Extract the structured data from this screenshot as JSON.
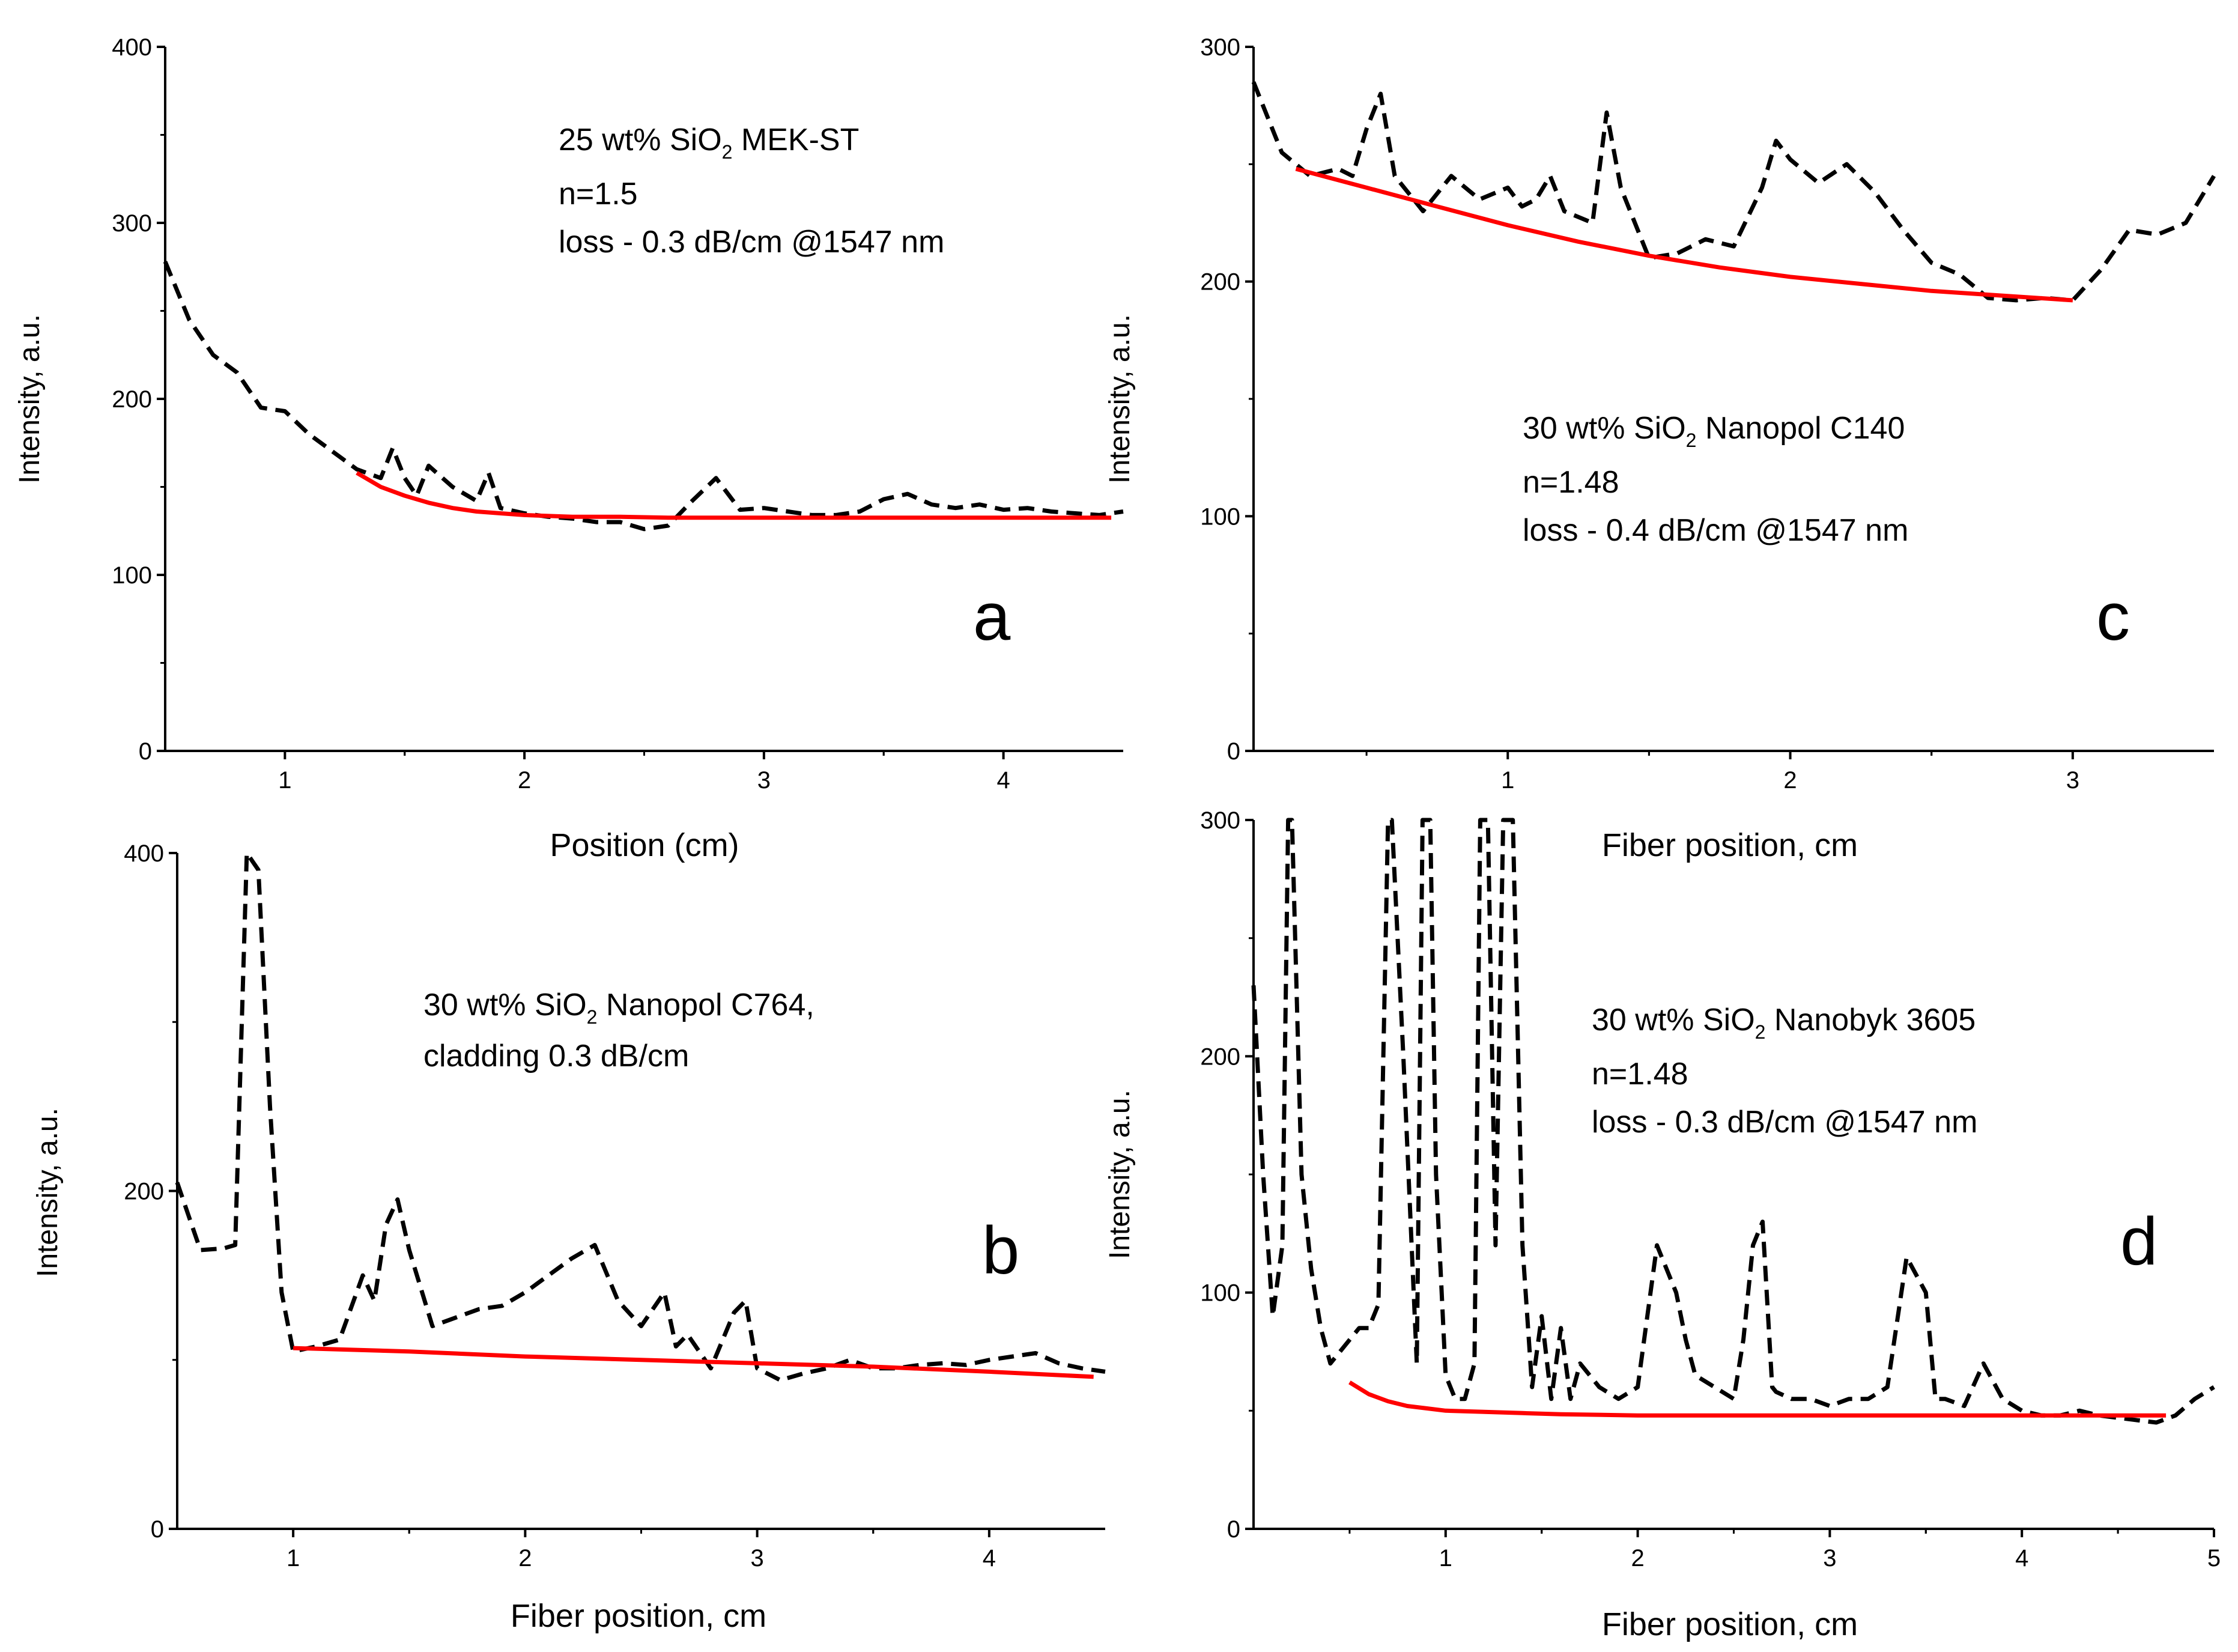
{
  "colors": {
    "measured": "#000000",
    "fit": "#ff0000",
    "background": "#ffffff"
  },
  "chart_data": [
    {
      "id": "a",
      "type": "line",
      "panel_label": "a",
      "xlabel": "Position (cm)",
      "ylabel": "Intensity, a.u.",
      "xlim": [
        0.5,
        4.5
      ],
      "ylim": [
        0,
        400
      ],
      "xticks": [
        1,
        2,
        3,
        4
      ],
      "yticks": [
        0,
        100,
        200,
        300,
        400
      ],
      "annotation": {
        "l1_pre": "25 wt% SiO",
        "l1_sub": "2",
        "l1_post": " MEK-ST",
        "l2": "n=1.5",
        "l3": "loss - 0.3 dB/cm @1547 nm"
      },
      "series": [
        {
          "name": "measured",
          "style": "dashed",
          "x": [
            0.5,
            0.6,
            0.7,
            0.8,
            0.9,
            1.0,
            1.1,
            1.2,
            1.3,
            1.4,
            1.45,
            1.5,
            1.55,
            1.6,
            1.7,
            1.8,
            1.85,
            1.9,
            2.0,
            2.1,
            2.2,
            2.3,
            2.4,
            2.5,
            2.6,
            2.7,
            2.8,
            2.9,
            3.0,
            3.1,
            3.2,
            3.3,
            3.4,
            3.5,
            3.6,
            3.7,
            3.8,
            3.9,
            4.0,
            4.1,
            4.2,
            4.3,
            4.4,
            4.5
          ],
          "y": [
            278,
            245,
            225,
            215,
            195,
            193,
            180,
            170,
            160,
            155,
            172,
            155,
            145,
            162,
            150,
            142,
            158,
            138,
            135,
            133,
            132,
            130,
            130,
            126,
            128,
            142,
            155,
            137,
            138,
            136,
            134,
            134,
            136,
            143,
            146,
            140,
            138,
            140,
            137,
            138,
            136,
            135,
            134,
            136
          ]
        },
        {
          "name": "fit",
          "style": "solid",
          "x": [
            1.3,
            1.4,
            1.5,
            1.6,
            1.7,
            1.8,
            1.9,
            2.0,
            2.2,
            2.4,
            2.6,
            2.8,
            3.0,
            3.5,
            4.0,
            4.45
          ],
          "y": [
            158,
            150,
            145,
            141,
            138,
            136,
            135,
            134,
            133,
            133,
            132.5,
            132.5,
            132.5,
            132.5,
            132.5,
            132.5
          ]
        }
      ]
    },
    {
      "id": "c",
      "type": "line",
      "panel_label": "c",
      "xlabel": "Fiber position, cm",
      "ylabel": "Intensity, a.u.",
      "xlim": [
        0.1,
        3.5
      ],
      "ylim": [
        0,
        300
      ],
      "xticks": [
        1,
        2,
        3
      ],
      "yticks": [
        0,
        100,
        200,
        300
      ],
      "annotation": {
        "l1_pre": "30 wt% SiO",
        "l1_sub": "2",
        "l1_post": " Nanopol C140",
        "l2": "n=1.48",
        "l3": "loss - 0.4 dB/cm @1547 nm"
      },
      "series": [
        {
          "name": "measured",
          "style": "dashed",
          "x": [
            0.1,
            0.2,
            0.3,
            0.4,
            0.45,
            0.5,
            0.55,
            0.6,
            0.7,
            0.8,
            0.9,
            1.0,
            1.05,
            1.1,
            1.15,
            1.2,
            1.3,
            1.35,
            1.4,
            1.5,
            1.6,
            1.7,
            1.8,
            1.9,
            1.95,
            2.0,
            2.1,
            2.2,
            2.3,
            2.4,
            2.5,
            2.6,
            2.7,
            2.8,
            2.9,
            3.0,
            3.1,
            3.2,
            3.3,
            3.4,
            3.5
          ],
          "y": [
            285,
            255,
            245,
            248,
            245,
            265,
            280,
            245,
            230,
            245,
            235,
            240,
            232,
            235,
            245,
            230,
            225,
            272,
            240,
            210,
            212,
            218,
            215,
            240,
            260,
            252,
            242,
            250,
            238,
            222,
            208,
            203,
            193,
            192,
            193,
            192,
            205,
            222,
            220,
            225,
            245
          ]
        },
        {
          "name": "fit",
          "style": "solid",
          "x": [
            0.25,
            0.5,
            0.75,
            1.0,
            1.25,
            1.5,
            1.75,
            2.0,
            2.25,
            2.5,
            2.75,
            3.0
          ],
          "y": [
            248,
            240,
            232,
            224,
            217,
            211,
            206,
            202,
            199,
            196,
            194,
            192
          ]
        }
      ]
    },
    {
      "id": "b",
      "type": "line",
      "panel_label": "b",
      "xlabel": "Fiber position, cm",
      "ylabel": "Intensity, a.u.",
      "xlim": [
        0.5,
        4.5
      ],
      "ylim": [
        0,
        400
      ],
      "xticks": [
        1,
        2,
        3,
        4
      ],
      "yticks": [
        0,
        200,
        400
      ],
      "annotation": {
        "l1_pre": "30 wt% SiO",
        "l1_sub": "2",
        "l1_post": " Nanopol C764,",
        "l2": "cladding 0.3 dB/cm"
      },
      "series": [
        {
          "name": "measured",
          "style": "dashed",
          "x": [
            0.5,
            0.6,
            0.7,
            0.75,
            0.8,
            0.85,
            0.9,
            0.95,
            1.0,
            1.1,
            1.2,
            1.3,
            1.35,
            1.4,
            1.45,
            1.5,
            1.6,
            1.7,
            1.8,
            1.9,
            2.0,
            2.1,
            2.2,
            2.3,
            2.4,
            2.5,
            2.6,
            2.65,
            2.7,
            2.8,
            2.9,
            2.95,
            3.0,
            3.1,
            3.2,
            3.3,
            3.4,
            3.5,
            3.6,
            3.7,
            3.8,
            3.9,
            4.0,
            4.1,
            4.2,
            4.3,
            4.4,
            4.5
          ],
          "y": [
            205,
            165,
            166,
            168,
            400,
            390,
            250,
            140,
            105,
            108,
            112,
            150,
            135,
            180,
            195,
            165,
            120,
            125,
            130,
            132,
            140,
            150,
            160,
            168,
            135,
            120,
            140,
            108,
            115,
            95,
            128,
            135,
            95,
            88,
            92,
            95,
            100,
            95,
            95,
            97,
            98,
            97,
            100,
            102,
            104,
            98,
            95,
            93
          ]
        },
        {
          "name": "fit",
          "style": "solid",
          "x": [
            1.0,
            1.5,
            2.0,
            2.5,
            3.0,
            3.5,
            4.0,
            4.45
          ],
          "y": [
            107,
            105,
            102,
            100,
            98,
            96,
            93,
            90
          ]
        }
      ]
    },
    {
      "id": "d",
      "type": "line",
      "panel_label": "d",
      "xlabel": "Fiber position, cm",
      "ylabel": "Intensity, a.u.",
      "xlim": [
        0,
        5
      ],
      "ylim": [
        0,
        300
      ],
      "xticks": [
        1,
        2,
        3,
        4,
        5
      ],
      "yticks": [
        0,
        100,
        200,
        300
      ],
      "annotation": {
        "l1_pre": "30 wt% SiO",
        "l1_sub": "2",
        "l1_post": " Nanobyk 3605",
        "l2": "n=1.48",
        "l3": "loss - 0.3 dB/cm @1547 nm"
      },
      "series": [
        {
          "name": "measured",
          "style": "dashed",
          "x": [
            0,
            0.05,
            0.1,
            0.15,
            0.18,
            0.2,
            0.25,
            0.3,
            0.35,
            0.4,
            0.45,
            0.5,
            0.55,
            0.6,
            0.65,
            0.7,
            0.72,
            0.78,
            0.85,
            0.88,
            0.92,
            0.95,
            1.0,
            1.05,
            1.1,
            1.15,
            1.18,
            1.22,
            1.26,
            1.3,
            1.35,
            1.4,
            1.45,
            1.5,
            1.55,
            1.6,
            1.65,
            1.7,
            1.8,
            1.9,
            2.0,
            2.1,
            2.15,
            2.2,
            2.25,
            2.3,
            2.4,
            2.5,
            2.55,
            2.6,
            2.65,
            2.7,
            2.72,
            2.8,
            2.9,
            3.0,
            3.1,
            3.2,
            3.3,
            3.4,
            3.5,
            3.55,
            3.6,
            3.7,
            3.8,
            3.9,
            4.0,
            4.1,
            4.2,
            4.3,
            4.4,
            4.5,
            4.6,
            4.7,
            4.8,
            4.9,
            5.0
          ],
          "y": [
            230,
            150,
            90,
            120,
            300,
            300,
            150,
            110,
            85,
            70,
            75,
            80,
            85,
            85,
            95,
            300,
            300,
            200,
            70,
            300,
            300,
            150,
            65,
            55,
            55,
            70,
            300,
            300,
            120,
            300,
            300,
            120,
            60,
            90,
            55,
            85,
            55,
            70,
            60,
            55,
            60,
            120,
            110,
            100,
            80,
            65,
            60,
            55,
            80,
            120,
            130,
            60,
            58,
            55,
            55,
            52,
            55,
            55,
            60,
            115,
            100,
            55,
            55,
            52,
            70,
            55,
            50,
            48,
            48,
            50,
            48,
            47,
            46,
            45,
            48,
            55,
            60
          ]
        },
        {
          "name": "fit",
          "style": "solid",
          "x": [
            0.5,
            0.6,
            0.7,
            0.8,
            0.9,
            1.0,
            1.2,
            1.4,
            1.6,
            2.0,
            2.5,
            3.0,
            3.5,
            4.0,
            4.5,
            4.75
          ],
          "y": [
            62,
            57,
            54,
            52,
            51,
            50,
            49.5,
            49,
            48.5,
            48,
            48,
            48,
            48,
            48,
            48,
            48
          ]
        }
      ]
    }
  ]
}
